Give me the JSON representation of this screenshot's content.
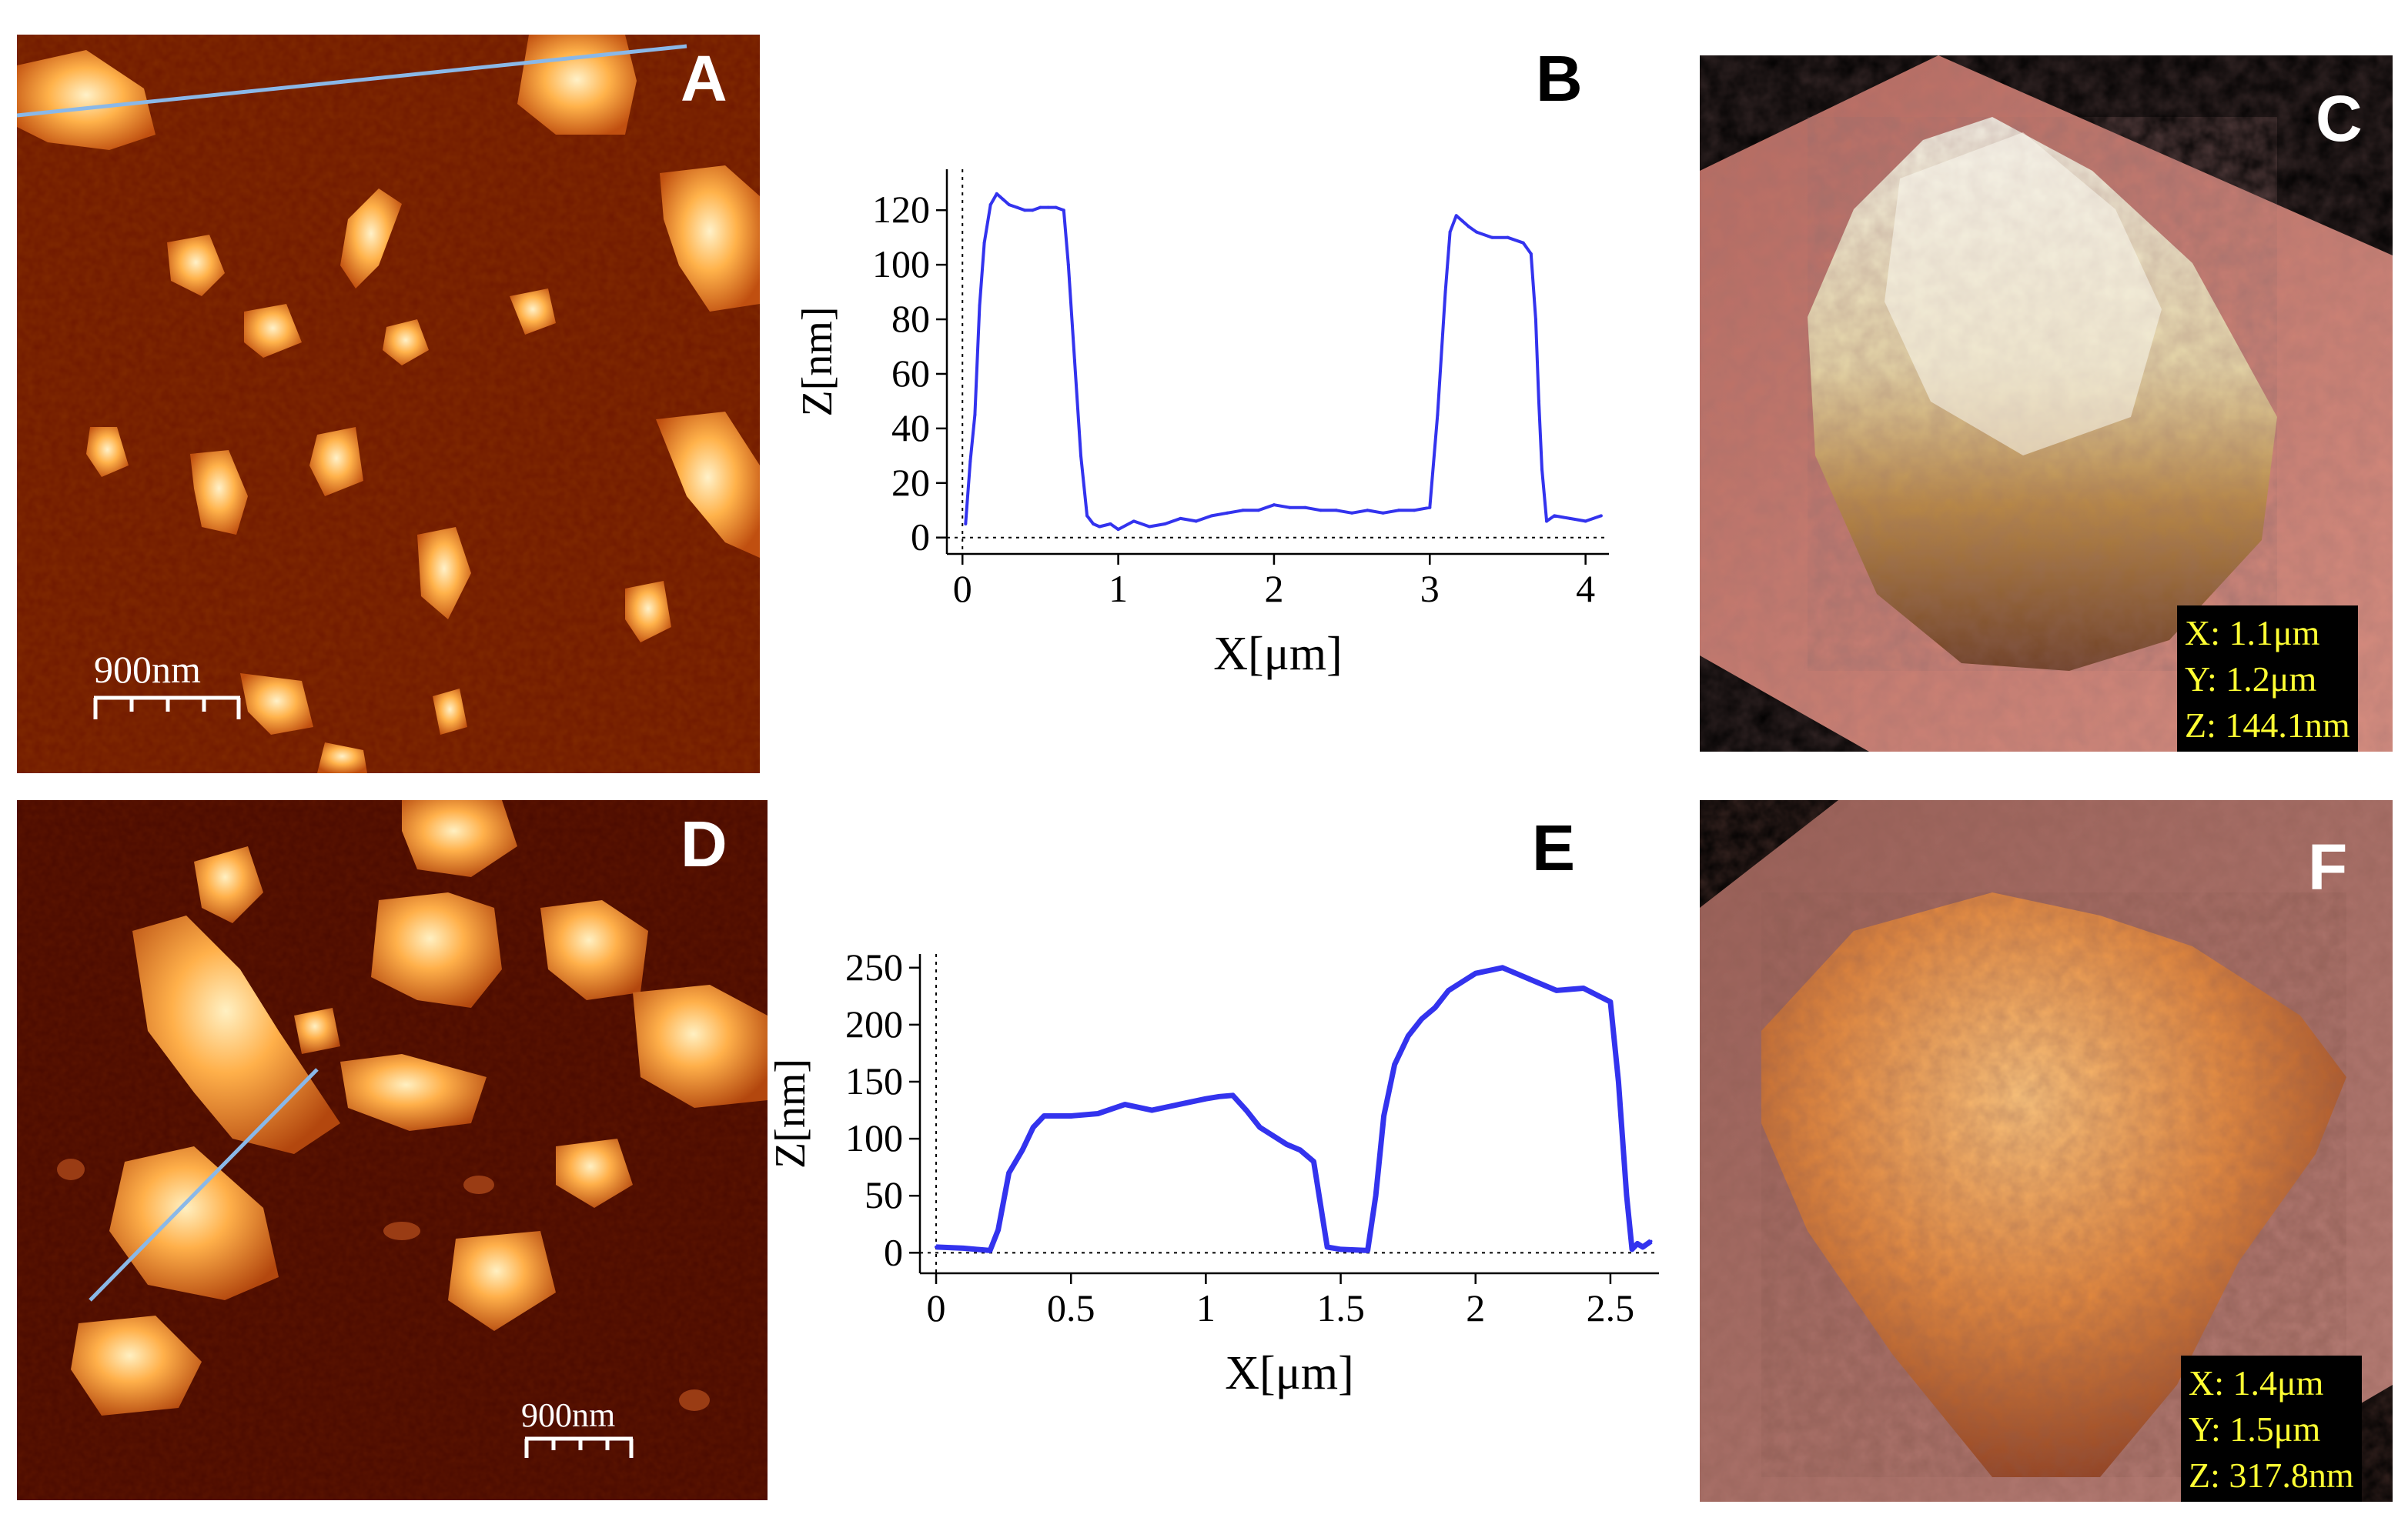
{
  "panels": {
    "A": {
      "letter": "A",
      "scale_bar": "900nm"
    },
    "B": {
      "letter": "B"
    },
    "C": {
      "letter": "C",
      "dims": [
        "X: 1.1μm",
        "Y: 1.2μm",
        "Z: 144.1nm"
      ]
    },
    "D": {
      "letter": "D",
      "scale_bar": "900nm"
    },
    "E": {
      "letter": "E"
    },
    "F": {
      "letter": "F",
      "dims": [
        "X: 1.4μm",
        "Y: 1.5μm",
        "Z: 317.8nm"
      ]
    }
  },
  "colors": {
    "profile_line": "#3333ee",
    "afm_dark": "#6b1500",
    "afm_bright": "#ffcf7a",
    "dims_text": "#ffff33",
    "section_line": "#8ab8e8"
  },
  "chart_data": [
    {
      "panel": "B",
      "type": "line",
      "xlabel": "X[μm]",
      "ylabel": "Z[nm]",
      "xlim": [
        -0.1,
        4.15
      ],
      "ylim": [
        -6,
        135
      ],
      "xticks": [
        0,
        1,
        2,
        3,
        4
      ],
      "xtick_labels": [
        "0",
        "1",
        "2",
        "3",
        "4"
      ],
      "yticks": [
        0,
        20,
        40,
        60,
        80,
        100,
        120
      ],
      "ytick_labels": [
        "0",
        "20",
        "40",
        "60",
        "80",
        "100",
        "120"
      ],
      "x": [
        0.02,
        0.05,
        0.08,
        0.11,
        0.14,
        0.18,
        0.22,
        0.26,
        0.3,
        0.35,
        0.4,
        0.45,
        0.5,
        0.55,
        0.6,
        0.65,
        0.68,
        0.72,
        0.76,
        0.8,
        0.84,
        0.88,
        0.95,
        1.0,
        1.1,
        1.2,
        1.3,
        1.4,
        1.5,
        1.6,
        1.7,
        1.8,
        1.9,
        2.0,
        2.1,
        2.2,
        2.3,
        2.4,
        2.5,
        2.6,
        2.7,
        2.8,
        2.9,
        3.0,
        3.05,
        3.1,
        3.13,
        3.17,
        3.21,
        3.25,
        3.3,
        3.4,
        3.5,
        3.6,
        3.65,
        3.68,
        3.7,
        3.72,
        3.75,
        3.8,
        3.9,
        4.0,
        4.1
      ],
      "y": [
        5,
        28,
        45,
        85,
        108,
        122,
        126,
        124,
        122,
        121,
        120,
        120,
        121,
        121,
        121,
        120,
        100,
        65,
        30,
        8,
        5,
        4,
        5,
        3,
        6,
        4,
        5,
        7,
        6,
        8,
        9,
        10,
        10,
        12,
        11,
        11,
        10,
        10,
        9,
        10,
        9,
        10,
        10,
        11,
        45,
        90,
        112,
        118,
        116,
        114,
        112,
        110,
        110,
        108,
        104,
        80,
        50,
        25,
        6,
        8,
        7,
        6,
        8
      ]
    },
    {
      "panel": "E",
      "type": "line",
      "xlabel": "X[μm]",
      "ylabel": "Z[nm]",
      "xlim": [
        -0.06,
        2.68
      ],
      "ylim": [
        -18,
        262
      ],
      "xticks": [
        0,
        0.5,
        1,
        1.5,
        2,
        2.5
      ],
      "xtick_labels": [
        "0",
        "0.5",
        "1",
        "1.5",
        "2",
        "2.5"
      ],
      "yticks": [
        0,
        50,
        100,
        150,
        200,
        250
      ],
      "ytick_labels": [
        "0",
        "50",
        "100",
        "150",
        "200",
        "250"
      ],
      "x": [
        0.0,
        0.1,
        0.2,
        0.23,
        0.27,
        0.32,
        0.36,
        0.4,
        0.5,
        0.6,
        0.7,
        0.8,
        0.9,
        1.0,
        1.05,
        1.1,
        1.15,
        1.2,
        1.3,
        1.35,
        1.4,
        1.45,
        1.5,
        1.6,
        1.63,
        1.66,
        1.7,
        1.75,
        1.8,
        1.85,
        1.9,
        2.0,
        2.1,
        2.2,
        2.3,
        2.4,
        2.5,
        2.53,
        2.56,
        2.58,
        2.6,
        2.62,
        2.65
      ],
      "y": [
        5,
        4,
        2,
        20,
        70,
        90,
        110,
        120,
        120,
        122,
        130,
        125,
        130,
        135,
        137,
        138,
        125,
        110,
        95,
        90,
        80,
        5,
        3,
        2,
        50,
        120,
        165,
        190,
        205,
        215,
        230,
        245,
        250,
        240,
        230,
        232,
        220,
        150,
        50,
        3,
        8,
        5,
        10
      ]
    }
  ]
}
